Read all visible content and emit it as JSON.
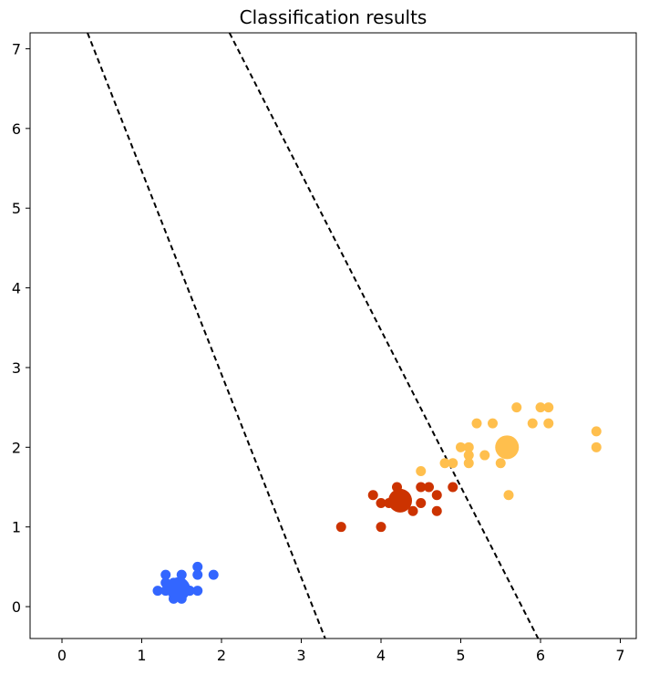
{
  "chart_data": {
    "type": "scatter",
    "title": "Classification results",
    "xlabel": "",
    "ylabel": "",
    "xlim": [
      -0.4,
      7.2
    ],
    "ylim": [
      -0.4,
      7.2
    ],
    "xticks": [
      "0",
      "1",
      "2",
      "3",
      "4",
      "5",
      "6",
      "7"
    ],
    "yticks": [
      "0",
      "1",
      "2",
      "3",
      "4",
      "5",
      "6",
      "7"
    ],
    "grid": false,
    "series": [
      {
        "color": "#3366ff",
        "points": [
          [
            1.2,
            0.2
          ],
          [
            1.3,
            0.2
          ],
          [
            1.3,
            0.3
          ],
          [
            1.3,
            0.4
          ],
          [
            1.4,
            0.1
          ],
          [
            1.4,
            0.2
          ],
          [
            1.4,
            0.3
          ],
          [
            1.5,
            0.1
          ],
          [
            1.5,
            0.2
          ],
          [
            1.5,
            0.3
          ],
          [
            1.5,
            0.4
          ],
          [
            1.6,
            0.2
          ],
          [
            1.6,
            0.2
          ],
          [
            1.7,
            0.2
          ],
          [
            1.7,
            0.4
          ],
          [
            1.7,
            0.5
          ],
          [
            1.9,
            0.4
          ],
          [
            1.5,
            0.2
          ],
          [
            1.4,
            0.2
          ],
          [
            1.6,
            0.2
          ]
        ],
        "centroid": [
          1.46,
          0.22
        ]
      },
      {
        "color": "#cc3300",
        "points": [
          [
            3.5,
            1.0
          ],
          [
            3.9,
            1.4
          ],
          [
            4.0,
            1.0
          ],
          [
            4.0,
            1.3
          ],
          [
            4.1,
            1.3
          ],
          [
            4.2,
            1.3
          ],
          [
            4.2,
            1.5
          ],
          [
            4.3,
            1.3
          ],
          [
            4.4,
            1.2
          ],
          [
            4.5,
            1.3
          ],
          [
            4.5,
            1.5
          ],
          [
            4.6,
            1.5
          ],
          [
            4.7,
            1.2
          ],
          [
            4.7,
            1.4
          ],
          [
            4.9,
            1.5
          ]
        ],
        "centroid": [
          4.24,
          1.33
        ]
      },
      {
        "color": "#ffbf4d",
        "points": [
          [
            4.5,
            1.7
          ],
          [
            4.8,
            1.8
          ],
          [
            4.9,
            1.8
          ],
          [
            5.0,
            2.0
          ],
          [
            5.1,
            1.8
          ],
          [
            5.1,
            1.9
          ],
          [
            5.1,
            2.0
          ],
          [
            5.2,
            2.3
          ],
          [
            5.3,
            1.9
          ],
          [
            5.4,
            2.3
          ],
          [
            5.5,
            1.8
          ],
          [
            5.6,
            1.4
          ],
          [
            5.7,
            2.5
          ],
          [
            5.9,
            2.3
          ],
          [
            6.0,
            2.5
          ],
          [
            6.1,
            2.3
          ],
          [
            6.1,
            2.5
          ],
          [
            6.7,
            2.0
          ],
          [
            6.7,
            2.2
          ]
        ],
        "centroid": [
          5.58,
          2.0
        ]
      }
    ],
    "boundaries": [
      {
        "style": "dashed",
        "color": "#000000",
        "points": [
          [
            0.32,
            7.2
          ],
          [
            3.3,
            -0.4
          ]
        ]
      },
      {
        "style": "dashed",
        "color": "#000000",
        "points": [
          [
            2.1,
            7.2
          ],
          [
            5.97,
            -0.4
          ]
        ]
      }
    ]
  }
}
